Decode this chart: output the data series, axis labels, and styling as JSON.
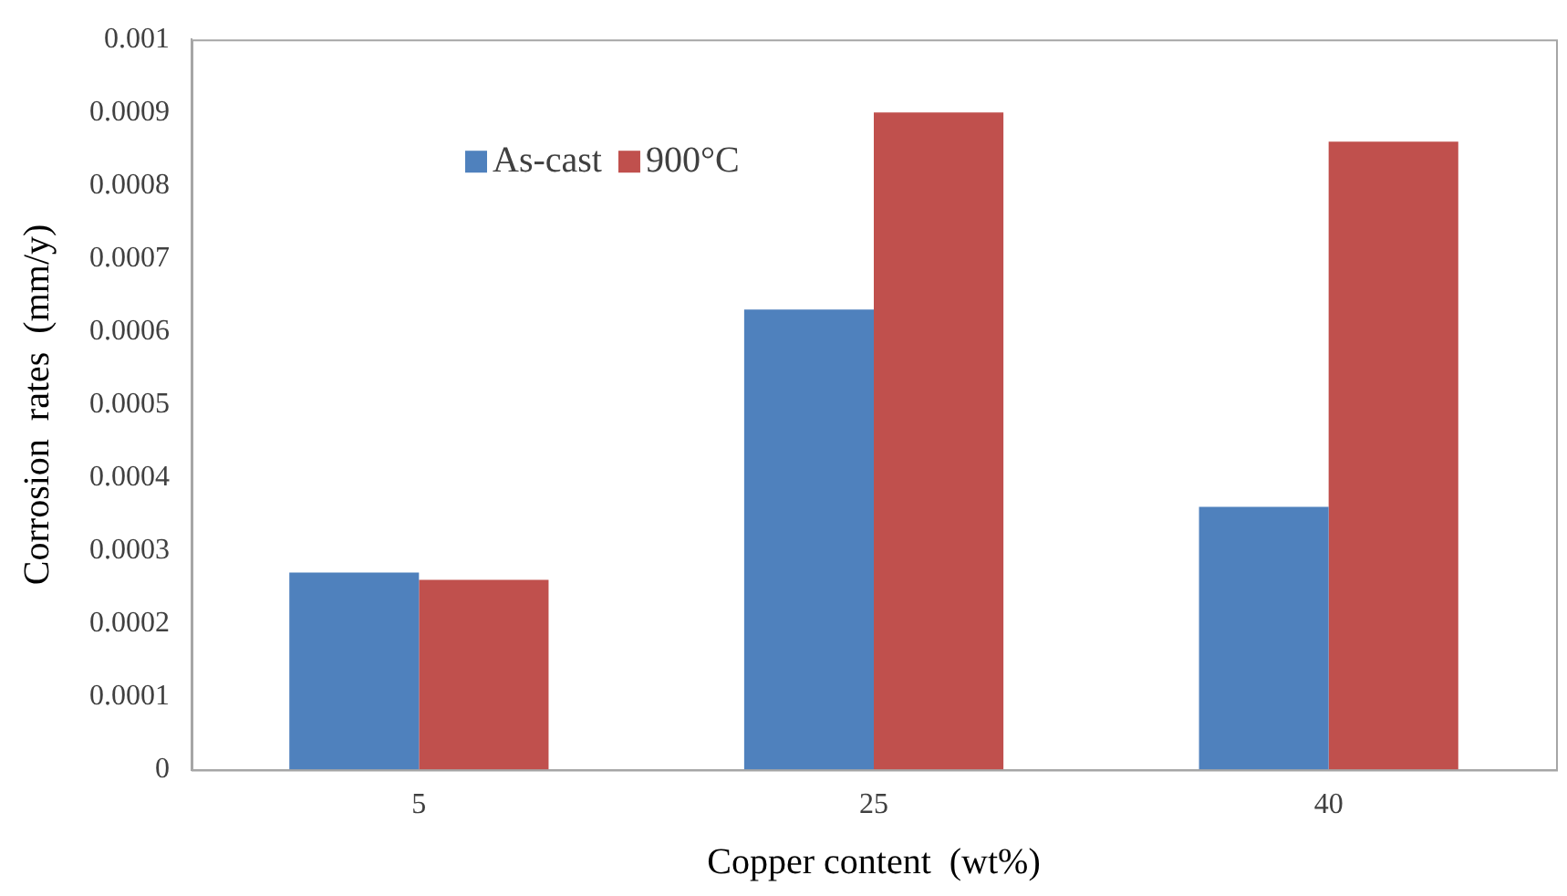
{
  "chart_data": {
    "type": "bar",
    "xlabel": "Copper content  (wt%)",
    "ylabel": "Corrosion  rates  (mm/y)",
    "categories": [
      "5",
      "25",
      "40"
    ],
    "series": [
      {
        "name": "As-cast",
        "color": "#4f81bd",
        "values": [
          0.00027,
          0.00063,
          0.00036
        ]
      },
      {
        "name": "900°C",
        "color": "#c0504d",
        "values": [
          0.00026,
          0.0009,
          0.00086
        ]
      }
    ],
    "ylim": [
      0,
      0.001
    ],
    "yticks": [
      0,
      0.0001,
      0.0002,
      0.0003,
      0.0004,
      0.0005,
      0.0006,
      0.0007,
      0.0008,
      0.0009,
      0.001
    ],
    "grid": false,
    "legend": "top left"
  }
}
